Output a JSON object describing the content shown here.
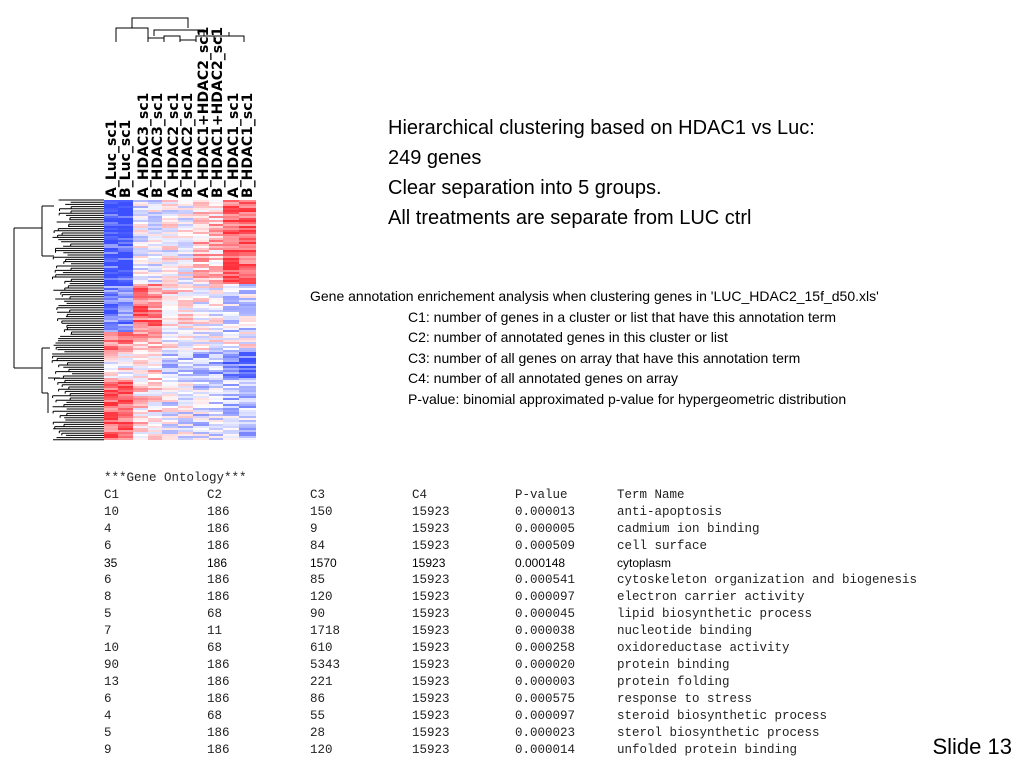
{
  "column_labels": [
    "A_Luc_sc1",
    "B_Luc_sc1",
    "A_HDAC3_sc1",
    "B_HDAC3_sc1",
    "A_HDAC2_sc1",
    "B_HDAC2_sc1",
    "A_HDAC1+HDAC2_sc1",
    "B_HDAC1+HDAC2_sc1",
    "A_HDAC1_sc1",
    "B_HDAC1_sc1"
  ],
  "headline": {
    "line1": "Hierarchical clustering based on HDAC1 vs Luc:",
    "line2": "249 genes",
    "line3": "Clear separation into 5 groups.",
    "line4": "All treatments are separate from LUC ctrl"
  },
  "annotation": {
    "lead": "Gene annotation enrichement analysis when clustering genes in 'LUC_HDAC2_15f_d50.xls'",
    "c1": "C1: number of genes in a cluster or list that have this annotation term",
    "c2": "C2: number of annotated genes in this cluster or list",
    "c3": "C3: number of all genes on array that have this annotation term",
    "c4": "C4: number of all annotated genes on array",
    "pvalue": "P-value: binomial approximated p-value for hypergeometric distribution"
  },
  "go_table": {
    "title": "***Gene Ontology***",
    "headers": [
      "C1",
      "C2",
      "C3",
      "C4",
      "P-value",
      "Term Name"
    ],
    "rows": [
      [
        "10",
        "186",
        "150",
        "15923",
        "0.000013",
        "anti-apoptosis"
      ],
      [
        "4",
        "186",
        "9",
        "15923",
        "0.000005",
        "cadmium ion binding"
      ],
      [
        "6",
        "186",
        "84",
        "15923",
        "0.000509",
        "cell surface"
      ],
      [
        "35",
        "186",
        "1570",
        "15923",
        "0.000148",
        "cytoplasm"
      ],
      [
        "6",
        "186",
        "85",
        "15923",
        "0.000541",
        "cytoskeleton organization and biogenesis"
      ],
      [
        "8",
        "186",
        "120",
        "15923",
        "0.000097",
        "electron carrier activity"
      ],
      [
        "5",
        "68",
        "90",
        "15923",
        "0.000045",
        "lipid biosynthetic process"
      ],
      [
        "7",
        "11",
        "1718",
        "15923",
        "0.000038",
        "nucleotide binding"
      ],
      [
        "10",
        "68",
        "610",
        "15923",
        "0.000258",
        "oxidoreductase activity"
      ],
      [
        "90",
        "186",
        "5343",
        "15923",
        "0.000020",
        "protein binding"
      ],
      [
        "13",
        "186",
        "221",
        "15923",
        "0.000003",
        "protein folding"
      ],
      [
        "6",
        "186",
        "86",
        "15923",
        "0.000575",
        "response to stress"
      ],
      [
        "4",
        "68",
        "55",
        "15923",
        "0.000097",
        "steroid biosynthetic process"
      ],
      [
        "5",
        "186",
        "28",
        "15923",
        "0.000023",
        "sterol biosynthetic process"
      ],
      [
        "9",
        "186",
        "120",
        "15923",
        "0.000014",
        "unfolded protein binding"
      ]
    ]
  },
  "slide_number": "Slide 13",
  "colors": {
    "high": "#e8323a",
    "low": "#3c4fe0",
    "neutral": "#ffffff"
  }
}
